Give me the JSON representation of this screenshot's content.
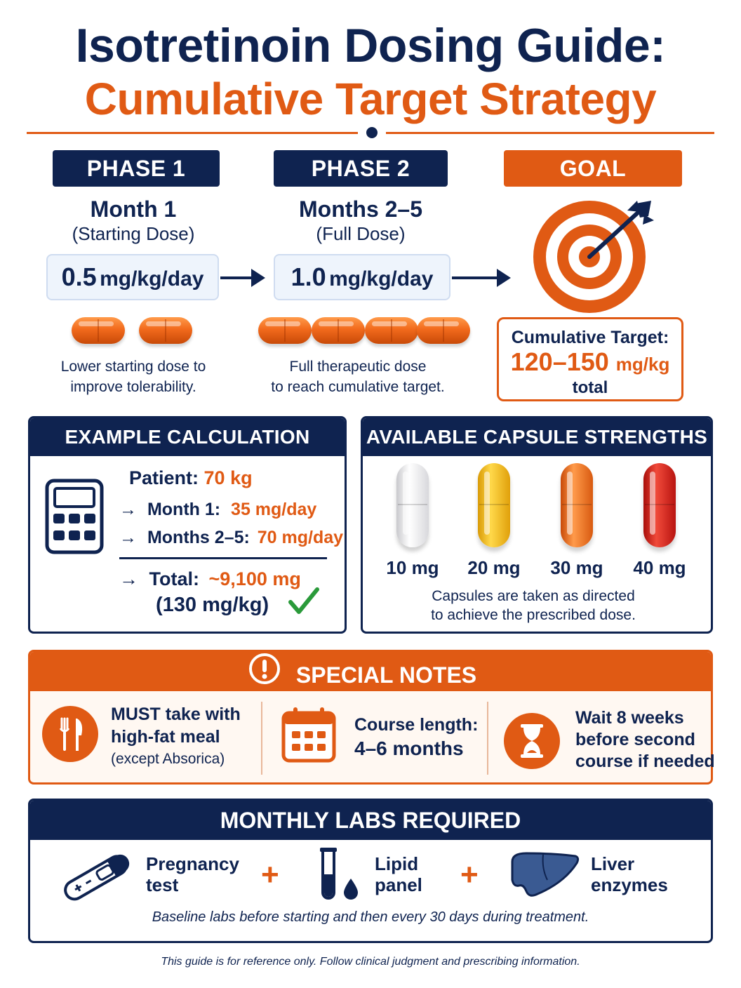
{
  "title": {
    "line1": "Isotretinoin Dosing Guide:",
    "line2": "Cumulative Target Strategy"
  },
  "phase1": {
    "header": "PHASE 1",
    "title": "Month 1",
    "subtitle": "(Starting Dose)",
    "dose_value": "0.5",
    "dose_unit": "mg/kg/day",
    "caption_line1": "Lower starting dose to",
    "caption_line2": "improve tolerability."
  },
  "phase2": {
    "header": "PHASE 2",
    "title": "Months 2–5",
    "subtitle": "(Full Dose)",
    "dose_value": "1.0",
    "dose_unit": "mg/kg/day",
    "caption_line1": "Full therapeutic dose",
    "caption_line2": "to reach cumulative target."
  },
  "goal": {
    "header": "GOAL",
    "target_label": "Cumulative Target:",
    "target_value": "120–150",
    "target_unit": "mg/kg",
    "target_suffix": "total"
  },
  "example": {
    "header": "EXAMPLE CALCULATION",
    "patient_label": "Patient:",
    "patient_value": "70 kg",
    "arrow": "→",
    "month1_label": "Month 1:",
    "month1_value": "35 mg/day",
    "months25_label": "Months 2–5:",
    "months25_value": "70 mg/day",
    "total_label": "Total:",
    "total_value": "~9,100 mg",
    "total_per_kg": "(130 mg/kg)"
  },
  "capsules": {
    "header": "AVAILABLE CAPSULE STRENGTHS",
    "items": [
      {
        "label": "10 mg",
        "color": "#e8e8ea"
      },
      {
        "label": "20 mg",
        "color": "#f3b818"
      },
      {
        "label": "30 mg",
        "color": "#f06a1a"
      },
      {
        "label": "40 mg",
        "color": "#d41c14"
      }
    ],
    "note_line1": "Capsules are taken as directed",
    "note_line2": "to achieve the prescribed dose."
  },
  "notes": {
    "header": "SPECIAL NOTES",
    "meal_line1": "MUST take with",
    "meal_line2": "high-fat meal",
    "meal_line3": "(except Absorica)",
    "course_line1": "Course length:",
    "course_line2": "4–6 months",
    "wait_line1": "Wait 8 weeks",
    "wait_line2": "before second",
    "wait_line3": "course if needed"
  },
  "labs": {
    "header": "MONTHLY LABS REQUIRED",
    "pregnancy_line1": "Pregnancy",
    "pregnancy_line2": "test",
    "lipid_line1": "Lipid",
    "lipid_line2": "panel",
    "liver_line1": "Liver",
    "liver_line2": "enzymes",
    "plus": "+",
    "note": "Baseline labs before starting and then every 30 days during treatment."
  },
  "footer": "This guide is for reference only. Follow clinical judgment and prescribing information.",
  "colors": {
    "navy": "#0f2350",
    "orange": "#e05a14",
    "check": "#2a9a3a"
  }
}
